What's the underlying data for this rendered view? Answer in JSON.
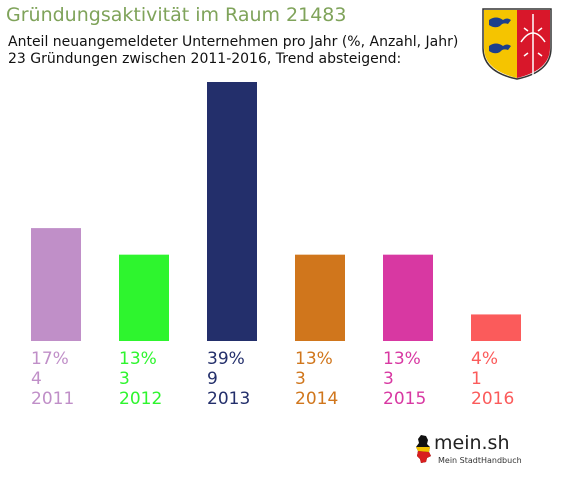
{
  "title": "Gründungsaktivität im Raum 21483",
  "subtitle_line1": "Anteil neuangemeldeter Unternehmen pro Jahr (%, Anzahl, Jahr)",
  "subtitle_line2": "23 Gründungen zwischen 2011-2016, Trend absteigend:",
  "logo": {
    "name": "mein.sh",
    "tagline": "Mein StadtHandbuch",
    "icon": "germany-map-icon"
  },
  "coat_of_arms_icon": "schleswig-holstein-coat-of-arms",
  "chart_data": {
    "type": "bar",
    "title": "Gründungsaktivität im Raum 21483",
    "xlabel": "",
    "ylabel": "",
    "grid": false,
    "categories": [
      "2011",
      "2012",
      "2013",
      "2014",
      "2015",
      "2016"
    ],
    "values": [
      17,
      13,
      39,
      13,
      13,
      4
    ],
    "percent_labels": [
      "17%",
      "13%",
      "39%",
      "13%",
      "13%",
      "4%"
    ],
    "counts": [
      "4",
      "3",
      "9",
      "3",
      "3",
      "1"
    ],
    "colors": [
      "#c08fc8",
      "#2ef52e",
      "#232f6b",
      "#d0761c",
      "#d838a2",
      "#fb5b5b"
    ]
  }
}
